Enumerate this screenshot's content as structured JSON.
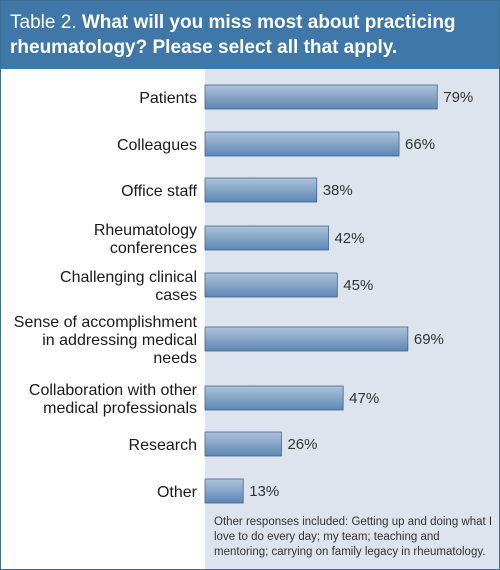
{
  "header": {
    "prefix": "Table 2.",
    "title": "What will you miss most about practicing rheumatology? Please select all that apply."
  },
  "colors": {
    "header_bg": "#3f78a8",
    "plot_bg": "#dde4ee",
    "bar_top": "#aec3dc",
    "bar_bottom": "#5d86b4",
    "bar_stroke": "#3e6690"
  },
  "chart_data": {
    "type": "bar",
    "orientation": "horizontal",
    "categories": [
      [
        "Patients"
      ],
      [
        "Colleagues"
      ],
      [
        "Office staff"
      ],
      [
        "Rheumatology",
        "conferences"
      ],
      [
        "Challenging clinical",
        "cases"
      ],
      [
        "Sense of accomplishment",
        "in addressing medical",
        "needs"
      ],
      [
        "Collaboration with other",
        "medical professionals"
      ],
      [
        "Research"
      ],
      [
        "Other"
      ]
    ],
    "values": [
      79,
      66,
      38,
      42,
      45,
      69,
      47,
      26,
      13
    ],
    "value_labels": [
      "79%",
      "66%",
      "38%",
      "42%",
      "45%",
      "69%",
      "47%",
      "26%",
      "13%"
    ],
    "xlim": [
      0,
      100
    ],
    "grid": false,
    "legend": "none"
  },
  "footnote": "Other responses included: Getting up and doing what I love to do every day; my team; teaching and mentoring; carrying on family legacy in rheumatology."
}
